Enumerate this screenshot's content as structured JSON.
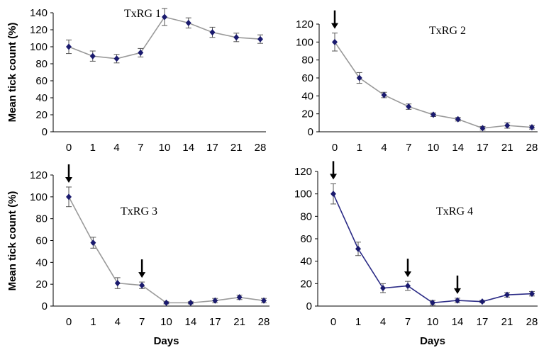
{
  "chart_data": [
    {
      "type": "line",
      "title": "TxRG 1",
      "xlabel": "",
      "ylabel": "Mean tick count (%)",
      "categories": [
        "0",
        "1",
        "4",
        "7",
        "10",
        "14",
        "17",
        "21",
        "28"
      ],
      "ylim": [
        0,
        140
      ],
      "yticks": [
        0,
        20,
        40,
        60,
        80,
        100,
        120,
        140
      ],
      "series": [
        {
          "values": [
            100,
            89,
            86,
            93,
            135,
            128,
            117,
            111,
            109
          ],
          "errors": [
            8,
            6,
            5,
            5,
            10,
            6,
            6,
            5,
            5
          ]
        }
      ],
      "arrows_at": [],
      "color": "#9a9a9a",
      "marker_color": "#1a1a6e"
    },
    {
      "type": "line",
      "title": "TxRG 2",
      "xlabel": "",
      "ylabel": "",
      "categories": [
        "0",
        "1",
        "4",
        "7",
        "10",
        "14",
        "17",
        "21",
        "28"
      ],
      "ylim": [
        0,
        120
      ],
      "yticks": [
        0,
        20,
        40,
        60,
        80,
        100,
        120
      ],
      "series": [
        {
          "values": [
            100,
            60,
            41,
            28,
            19,
            14,
            4,
            7,
            5
          ],
          "errors": [
            10,
            6,
            3,
            3,
            2,
            2,
            2,
            3,
            2
          ]
        }
      ],
      "arrows_at": [
        "0"
      ],
      "color": "#9a9a9a",
      "marker_color": "#1a1a6e"
    },
    {
      "type": "line",
      "title": "TxRG 3",
      "xlabel": "Days",
      "ylabel": "Mean tick count (%)",
      "categories": [
        "0",
        "1",
        "4",
        "7",
        "10",
        "14",
        "17",
        "21",
        "28"
      ],
      "ylim": [
        0,
        120
      ],
      "yticks": [
        0,
        20,
        40,
        60,
        80,
        100,
        120
      ],
      "series": [
        {
          "values": [
            100,
            58,
            21,
            19,
            3,
            3,
            5,
            8,
            5
          ],
          "errors": [
            9,
            5,
            5,
            3,
            1,
            1,
            2,
            2,
            2
          ]
        }
      ],
      "arrows_at": [
        "0",
        "7"
      ],
      "color": "#9a9a9a",
      "marker_color": "#1a1a6e"
    },
    {
      "type": "line",
      "title": "TxRG 4",
      "xlabel": "Days",
      "ylabel": "",
      "categories": [
        "0",
        "1",
        "4",
        "7",
        "10",
        "14",
        "17",
        "21",
        "28"
      ],
      "ylim": [
        0,
        120
      ],
      "yticks": [
        0,
        20,
        40,
        60,
        80,
        100,
        120
      ],
      "series": [
        {
          "values": [
            100,
            51,
            16,
            18,
            3,
            5,
            4,
            10,
            11
          ],
          "errors": [
            9,
            6,
            4,
            4,
            2,
            2,
            1,
            2,
            2
          ]
        }
      ],
      "arrows_at": [
        "0",
        "7",
        "14"
      ],
      "color": "#2b2b86",
      "marker_color": "#1a1a6e"
    }
  ]
}
